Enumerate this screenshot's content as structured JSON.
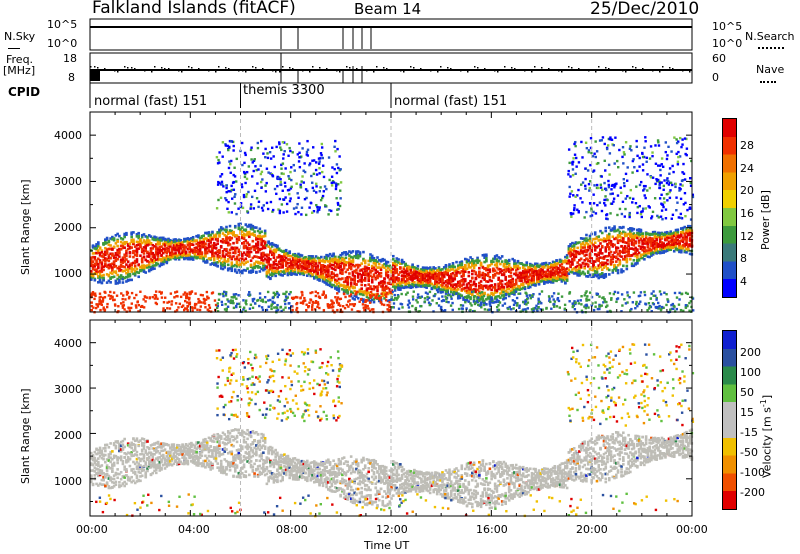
{
  "header": {
    "site": "Falkland Islands (fitACF)",
    "beam": "Beam 14",
    "date": "25/Dec/2010"
  },
  "top_panels": {
    "nsky_label": "N.Sky",
    "nsky_ticks": [
      "10^5",
      "10^0"
    ],
    "nsearch_label": "N.Search",
    "nsearch_ticks": [
      "10^5",
      "10^0"
    ],
    "freq_label": "Freq.",
    "freq_unit": "[MHz]",
    "freq_ticks": [
      "18",
      "8"
    ],
    "nave_label": "Nave",
    "nave_ticks": [
      "60",
      "0"
    ],
    "cpid_label": "CPID",
    "cpid_segments": [
      {
        "label": "normal (fast) 151",
        "start_h": 0,
        "end_h": 6
      },
      {
        "label": "themis 3300",
        "start_h": 6,
        "end_h": 12
      },
      {
        "label": "normal (fast) 151",
        "start_h": 12,
        "end_h": 24
      }
    ]
  },
  "colors": {
    "power_scale": [
      "#0000ff",
      "#2050c8",
      "#3a7a7a",
      "#3c9a3c",
      "#80c840",
      "#f0d000",
      "#f0a000",
      "#f07000",
      "#f03000",
      "#e00000"
    ],
    "velocity_scale": [
      "#e00000",
      "#f05000",
      "#f09000",
      "#f0c000",
      "#c0c0c0",
      "#c0c0c0",
      "#60c040",
      "#2a8a4a",
      "#2a50a0",
      "#1020d0"
    ],
    "ground_scatter": "#bebdb6"
  },
  "chart_data": [
    {
      "type": "heatmap",
      "panel": "power",
      "ylabel": "Slant Range [km]",
      "y_ticks": [
        "4000",
        "3000",
        "2000",
        "1000"
      ],
      "x_ticks": [
        "00:00",
        "04:00",
        "08:00",
        "12:00",
        "16:00",
        "20:00",
        "00:00"
      ],
      "xlim_hours": [
        0,
        24
      ],
      "ylim_km": [
        180,
        4500
      ],
      "colorbar_label": "Power [dB]",
      "colorbar_ticks": [
        "28",
        "24",
        "20",
        "16",
        "12",
        "8",
        "4"
      ],
      "colorbar_range": [
        0,
        30
      ]
    },
    {
      "type": "heatmap",
      "panel": "velocity",
      "ylabel": "Slant Range [km]",
      "y_ticks": [
        "4000",
        "3000",
        "2000",
        "1000"
      ],
      "x_ticks": [
        "00:00",
        "04:00",
        "08:00",
        "12:00",
        "16:00",
        "20:00",
        "00:00"
      ],
      "xlim_hours": [
        0,
        24
      ],
      "ylim_km": [
        180,
        4500
      ],
      "xlabel": "Time UT",
      "colorbar_label": "Velocity [m s",
      "colorbar_label_sup": "-1",
      "colorbar_label_end": "]",
      "colorbar_ticks": [
        "200",
        "100",
        "50",
        "15",
        "-15",
        "-50",
        "-100",
        "-200"
      ],
      "colorbar_range": [
        -250,
        250
      ]
    }
  ]
}
